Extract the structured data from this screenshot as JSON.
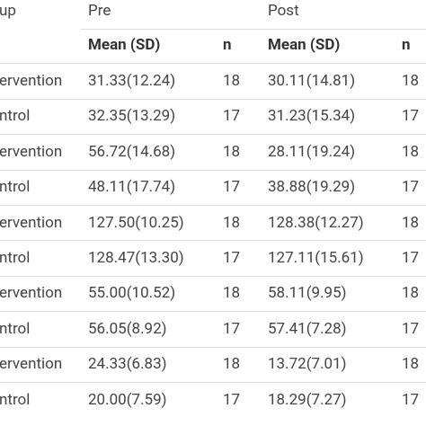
{
  "table": {
    "header": {
      "group": "up",
      "pre": "Pre",
      "post": "Post"
    },
    "subheader": [
      "Mean (SD)",
      "n",
      "Mean (SD)",
      "n"
    ],
    "rows": [
      [
        "ervention",
        "31.33(12.24)",
        18,
        "30.11(14.81)",
        18
      ],
      [
        "ntrol",
        "32.35(13.29)",
        17,
        "31.23(15.34)",
        17
      ],
      [
        "ervention",
        "56.72(14.68)",
        18,
        "28.11(19.24)",
        18
      ],
      [
        "ntrol",
        "48.11(17.74)",
        17,
        "38.88(19.29)",
        17
      ],
      [
        "ervention",
        "127.50(10.25)",
        18,
        "128.38(12.27)",
        18
      ],
      [
        "ntrol",
        "128.47(13.30)",
        17,
        "127.11(15.61)",
        17
      ],
      [
        "ervention",
        "55.00(10.52)",
        18,
        "58.11(9.95)",
        18
      ],
      [
        "ntrol",
        "56.05(8.92)",
        17,
        "57.41(7.28)",
        17
      ],
      [
        "ervention",
        "24.33(6.83)",
        18,
        "13.72(7.01)",
        18
      ],
      [
        "ntrol",
        "20.00(7.59)",
        17,
        "18.29(7.27)",
        17
      ]
    ]
  }
}
